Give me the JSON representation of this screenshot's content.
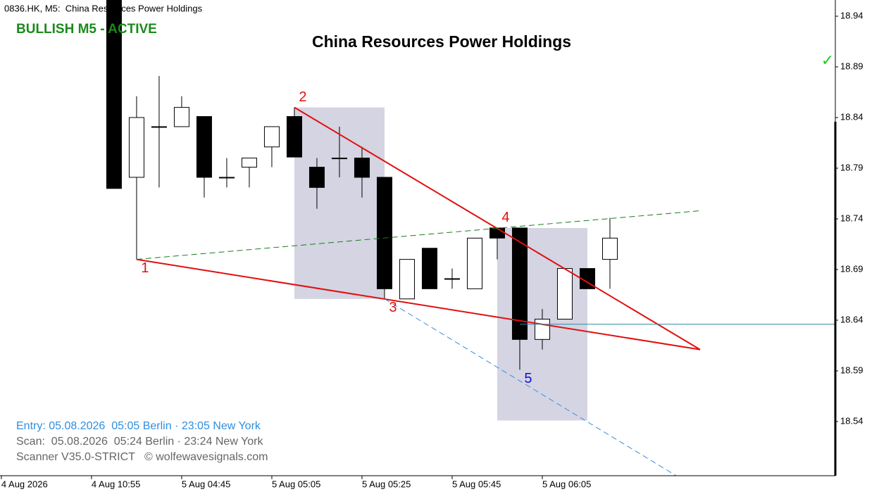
{
  "header": "0836.HK, M5:  China Resources Power Holdings",
  "status": "BULLISH M5 - ACTIVE",
  "checkmark": "✓",
  "footer": [
    "Entry: 05.08.2026  05:05 Berlin · 23:05 New York",
    "Scan:  05.08.2026  05:24 Berlin · 23:24 New York",
    "Scanner V35.0-STRICT   © wolfewavesignals.com"
  ],
  "chart_data": {
    "type": "candlestick",
    "title": "China Resources Power Holdings",
    "up_color": "#ffffff",
    "down_color": "#000000",
    "x": [
      0,
      1,
      2,
      3,
      4,
      5,
      6,
      7,
      8,
      9,
      10,
      11,
      12,
      13,
      14,
      15,
      16,
      17,
      18,
      19,
      20,
      21,
      22
    ],
    "open": [
      18.96,
      18.781,
      18.831,
      18.831,
      18.841,
      18.781,
      18.791,
      18.811,
      18.841,
      18.791,
      18.8,
      18.8,
      18.781,
      18.661,
      18.711,
      18.681,
      18.671,
      18.731,
      18.731,
      18.621,
      18.641,
      18.691,
      18.7
    ],
    "high": [
      18.97,
      18.861,
      18.881,
      18.861,
      18.841,
      18.8,
      18.8,
      18.831,
      18.85,
      18.8,
      18.831,
      18.811,
      18.781,
      18.7,
      18.711,
      18.691,
      18.721,
      18.731,
      18.731,
      18.651,
      18.691,
      18.691,
      18.741
    ],
    "low": [
      18.77,
      18.7,
      18.771,
      18.831,
      18.761,
      18.771,
      18.771,
      18.791,
      18.801,
      18.75,
      18.781,
      18.761,
      18.661,
      18.661,
      18.671,
      18.671,
      18.671,
      18.7,
      18.591,
      18.611,
      18.641,
      18.671,
      18.671
    ],
    "close": [
      18.77,
      18.84,
      18.831,
      18.85,
      18.781,
      18.781,
      18.8,
      18.831,
      18.801,
      18.771,
      18.8,
      18.781,
      18.671,
      18.7,
      18.671,
      18.681,
      18.721,
      18.721,
      18.621,
      18.641,
      18.691,
      18.671,
      18.721
    ],
    "xlim": [
      -5.06,
      32
    ],
    "xticks": [
      {
        "value": -5,
        "label": "4 Aug 2026"
      },
      {
        "value": -1,
        "label": "4 Aug 10:55"
      },
      {
        "value": 3,
        "label": "5 Aug 04:45"
      },
      {
        "value": 7,
        "label": "5 Aug 05:05"
      },
      {
        "value": 11,
        "label": "5 Aug 05:25"
      },
      {
        "value": 15,
        "label": "5 Aug 05:45"
      },
      {
        "value": 19,
        "label": "5 Aug 06:05"
      }
    ],
    "ylim": [
      18.4865,
      18.956
    ],
    "yticks": [
      18.94,
      18.89,
      18.84,
      18.79,
      18.74,
      18.69,
      18.64,
      18.59,
      18.54
    ],
    "zones": [
      {
        "x": [
          8,
          12
        ],
        "y": [
          18.661,
          18.85
        ],
        "color": "#d4d4e2"
      },
      {
        "x": [
          17,
          21
        ],
        "y": [
          18.541,
          18.731
        ],
        "color": "#d4d4e2"
      }
    ],
    "lines": [
      {
        "x": [
          1,
          26
        ],
        "y": [
          18.7,
          18.611
        ],
        "color": "#e01010",
        "dash": false,
        "width": 2
      },
      {
        "x": [
          8,
          26
        ],
        "y": [
          18.85,
          18.611
        ],
        "color": "#e01010",
        "dash": false,
        "width": 2
      },
      {
        "x": [
          1,
          26
        ],
        "y": [
          18.7,
          18.748
        ],
        "color": "#1a7a1a",
        "dash": true,
        "width": 1
      },
      {
        "x": [
          12,
          24.94
        ],
        "y": [
          18.661,
          18.4865
        ],
        "color": "#3a8ee0",
        "dash": true,
        "width": 1
      },
      {
        "x": [
          18,
          32
        ],
        "y": [
          18.636,
          18.636
        ],
        "color": "#2a8aa0",
        "dash": false,
        "width": 1
      }
    ],
    "wave": {
      "labels": [
        "1",
        "2",
        "3",
        "4",
        "5"
      ],
      "x": [
        1,
        8,
        12,
        17,
        18
      ],
      "y": [
        18.7,
        18.85,
        18.661,
        18.731,
        18.591
      ],
      "colors": [
        "#e01010",
        "#e01010",
        "#e01010",
        "#e01010",
        "#1010d0"
      ]
    }
  }
}
